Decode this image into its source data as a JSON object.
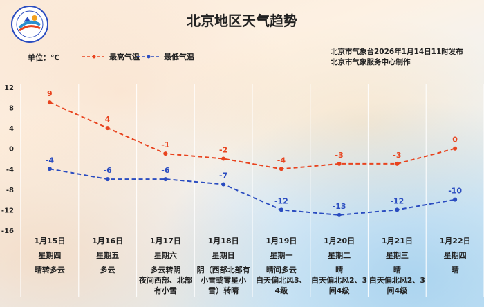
{
  "title": "北京地区天气趋势",
  "unit_label": "单位：℃",
  "publish_line1": "北京市气象台2026年1月14日11时发布",
  "publish_line2": "北京市气象服务中心制作",
  "colors": {
    "high": "#e8431e",
    "low": "#2a4cc0"
  },
  "chart_data": {
    "type": "line",
    "categories": [
      "1月15日",
      "1月16日",
      "1月17日",
      "1月18日",
      "1月19日",
      "1月20日",
      "1月21日",
      "1月22日"
    ],
    "weekdays": [
      "星期四",
      "星期五",
      "星期六",
      "星期日",
      "星期一",
      "星期二",
      "星期三",
      "星期四"
    ],
    "weather": [
      [
        "晴转多云"
      ],
      [
        "多云"
      ],
      [
        "多云转阴",
        "夜间西部、北部",
        "有小雪"
      ],
      [
        "阴（西部北部有",
        "小雪或零星小",
        "雪）转晴"
      ],
      [
        "晴间多云",
        "白天偏北风3、",
        "4级"
      ],
      [
        "晴",
        "白天偏北风2、3",
        "间4级"
      ],
      [
        "晴",
        "白天偏北风2、3",
        "间4级"
      ],
      [
        "晴"
      ]
    ],
    "series": [
      {
        "name": "最高气温",
        "values": [
          9,
          4,
          -1,
          -2,
          -4,
          -3,
          -3,
          0
        ]
      },
      {
        "name": "最低气温",
        "values": [
          -4,
          -6,
          -6,
          -7,
          -12,
          -13,
          -12,
          -10
        ]
      }
    ],
    "yticks": [
      12,
      8,
      4,
      0,
      -4,
      -8,
      -12,
      -16
    ],
    "ylim": [
      -16,
      12
    ],
    "grid": "vertical"
  }
}
